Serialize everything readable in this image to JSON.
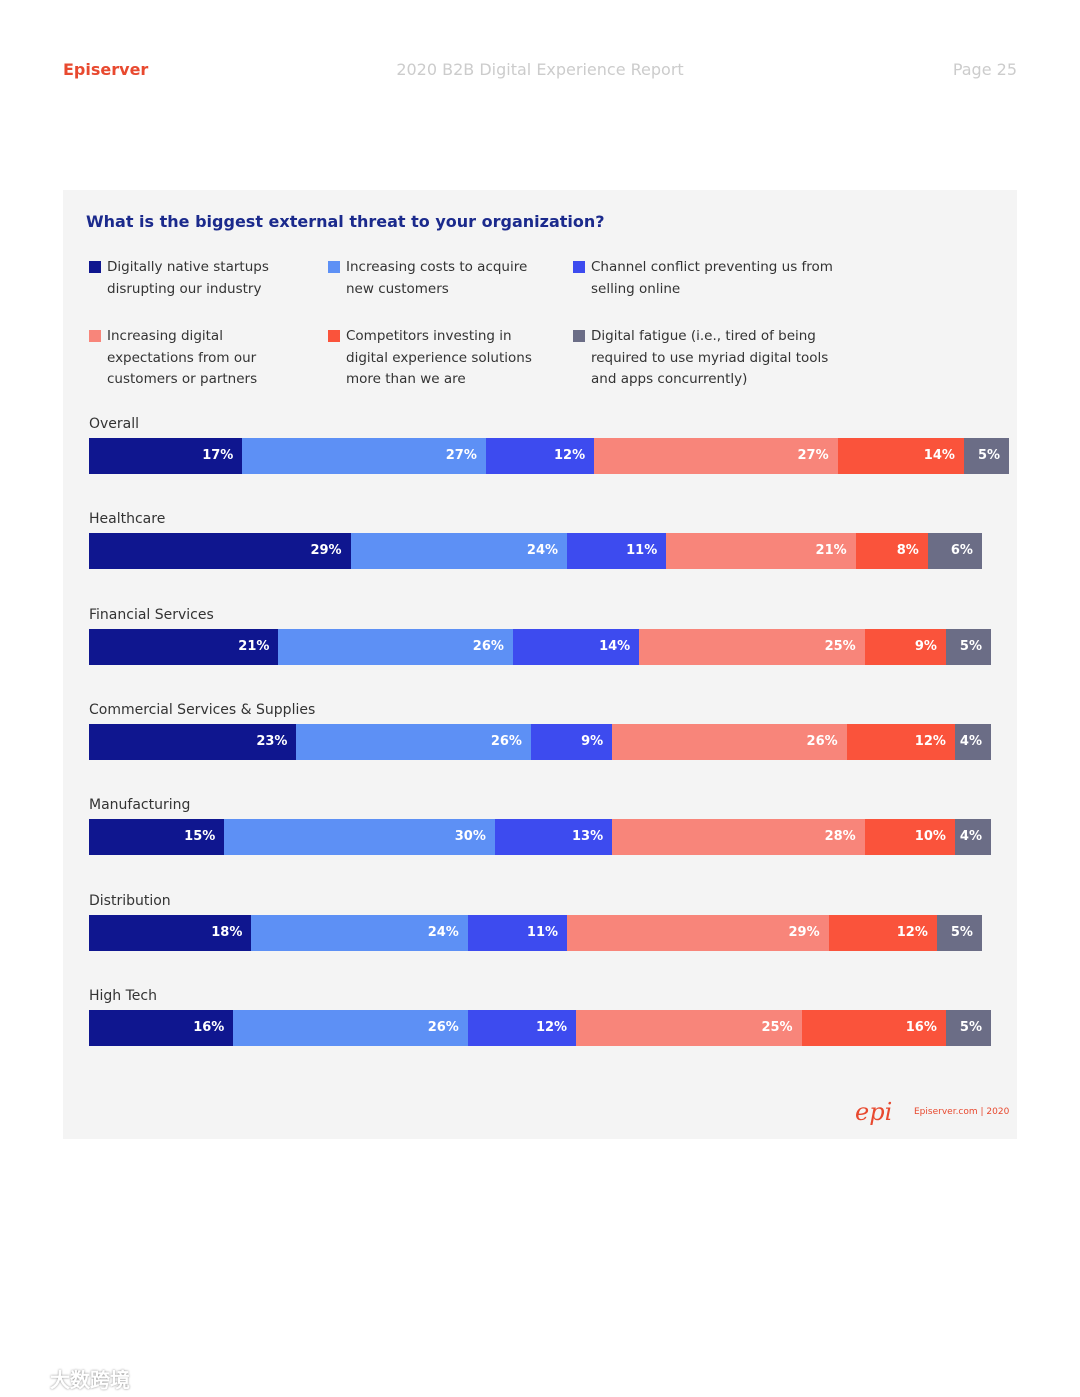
{
  "header": {
    "brand": "Episerver",
    "report": "2020 B2B Digital Experience Report",
    "page": "Page 25"
  },
  "chart_data": {
    "type": "stacked_bar_horizontal",
    "title": "What is the biggest external threat to your organization?",
    "categories": [
      "Overall",
      "Healthcare",
      "Financial Services",
      "Commercial Services & Supplies",
      "Manufacturing",
      "Distribution",
      "High Tech"
    ],
    "xlim": [
      0,
      100
    ],
    "series": [
      {
        "name": "Digitally native startups disrupting our industry",
        "color": "#0f168f",
        "values": [
          17,
          29,
          21,
          23,
          15,
          18,
          16
        ],
        "value_labels": [
          "17%",
          "29%",
          "21%",
          "23%",
          "15%",
          "18%",
          "16%"
        ]
      },
      {
        "name": "Increasing costs to acquire new customers",
        "color": "#5d90f5",
        "values": [
          27,
          24,
          26,
          26,
          30,
          24,
          26
        ],
        "value_labels": [
          "27%",
          "24%",
          "26%",
          "26%",
          "30%",
          "24%",
          "26%"
        ]
      },
      {
        "name": "Channel conflict preventing us from selling online",
        "color": "#3d4bef",
        "values": [
          12,
          11,
          14,
          9,
          13,
          11,
          12
        ],
        "value_labels": [
          "12%",
          "11%",
          "14%",
          "9%",
          "13%",
          "11%",
          "12%"
        ]
      },
      {
        "name": "Increasing digital expectations from our customers or partners",
        "color": "#f8857a",
        "values": [
          27,
          21,
          25,
          26,
          28,
          29,
          25
        ],
        "value_labels": [
          "27%",
          "21%",
          "25%",
          "26%",
          "28%",
          "29%",
          "25%"
        ]
      },
      {
        "name": "Competitors investing in digital experience solutions more than we are",
        "color": "#fa533b",
        "values": [
          14,
          8,
          9,
          12,
          10,
          12,
          16
        ],
        "value_labels": [
          "14%",
          "8%",
          "9%",
          "12%",
          "10%",
          "12%",
          "16%"
        ]
      },
      {
        "name": "Digital fatigue (i.e., tired of being required to use myriad digital tools and apps concurrently)",
        "color": "#6b6d86",
        "values": [
          5,
          6,
          5,
          4,
          4,
          5,
          5
        ],
        "value_labels": [
          "5%",
          "6%",
          "5%",
          "4%",
          "4%",
          "5%",
          "5%"
        ]
      }
    ]
  },
  "footer": {
    "logo": "epi",
    "site": "Episerver.com | 2020"
  },
  "watermark": "大数跨境"
}
